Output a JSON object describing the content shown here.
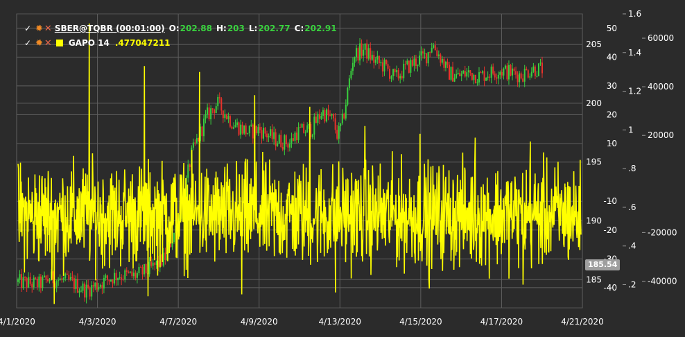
{
  "legend": {
    "main": {
      "symbol": "SBER@TQBR (00:01:00)",
      "o_label": "O:",
      "o": "202.88",
      "h_label": "H:",
      "h": "203",
      "l_label": "L:",
      "l": "202.77",
      "c_label": "C:",
      "c": "202.91",
      "value_color": "#39d13e"
    },
    "indicator": {
      "name": "GAPO 14",
      "value": ".477047211",
      "color": "#ffff00"
    }
  },
  "last_price_tag": "185.54",
  "chart_data": {
    "type": "line",
    "background": "#2b2b2b",
    "grid": true,
    "x_ticks": [
      "4/1/2020",
      "4/3/2020",
      "4/7/2020",
      "4/9/2020",
      "4/13/2020",
      "4/15/2020",
      "4/17/2020",
      "4/21/2020"
    ],
    "axes": {
      "price": {
        "ticks": [
          "185",
          "190",
          "195",
          "200",
          "205"
        ],
        "range": [
          182.6,
          207.6
        ]
      },
      "oscillator": {
        "ticks": [
          "-40",
          "-30",
          "-20",
          "-10",
          "10",
          "20",
          "30",
          "40",
          "50"
        ],
        "range": [
          -47,
          55
        ]
      },
      "gapo": {
        "ticks": [
          ".2",
          ".4",
          ".6",
          ".8",
          "1",
          "1.2",
          "1.4",
          "1.6"
        ],
        "range": [
          0.08,
          1.6
        ]
      },
      "volume": {
        "ticks": [
          "-40000",
          "-20000",
          "20000",
          "40000",
          "60000"
        ],
        "range": [
          -51000,
          70000
        ]
      }
    },
    "series": [
      {
        "name": "SBER@TQBR (00:01:00)",
        "kind": "candles",
        "axis": "price",
        "up_color": "#39d13e",
        "down_color": "#e8322b",
        "points": [
          [
            0,
            184.8
          ],
          [
            0.04,
            184.6
          ],
          [
            0.06,
            185.1
          ],
          [
            0.1,
            184.8
          ],
          [
            0.13,
            184.1
          ],
          [
            0.17,
            185.0
          ],
          [
            0.19,
            185.4
          ],
          [
            0.22,
            185.3
          ],
          [
            0.25,
            185.8
          ],
          [
            0.28,
            186.8
          ],
          [
            0.31,
            190.5
          ],
          [
            0.33,
            195.5
          ],
          [
            0.36,
            198.9
          ],
          [
            0.38,
            200.0
          ],
          [
            0.41,
            198.3
          ],
          [
            0.44,
            197.5
          ],
          [
            0.46,
            197.8
          ],
          [
            0.49,
            196.9
          ],
          [
            0.52,
            196.6
          ],
          [
            0.53,
            197.5
          ],
          [
            0.56,
            197.8
          ],
          [
            0.58,
            199.3
          ],
          [
            0.6,
            198.6
          ],
          [
            0.61,
            197.2
          ],
          [
            0.62,
            198.6
          ],
          [
            0.64,
            204.1
          ],
          [
            0.66,
            204.6
          ],
          [
            0.68,
            203.6
          ],
          [
            0.7,
            203.1
          ],
          [
            0.72,
            202.1
          ],
          [
            0.74,
            203.0
          ],
          [
            0.76,
            203.6
          ],
          [
            0.78,
            204.1
          ],
          [
            0.79,
            205.1
          ],
          [
            0.81,
            203.6
          ],
          [
            0.82,
            202.6
          ],
          [
            0.84,
            202.3
          ],
          [
            0.86,
            202.6
          ],
          [
            0.88,
            202.3
          ],
          [
            0.9,
            202.6
          ],
          [
            0.92,
            202.8
          ],
          [
            0.94,
            202.6
          ],
          [
            0.96,
            202.4
          ],
          [
            0.98,
            202.9
          ]
        ]
      },
      {
        "name": "GAPO 14",
        "kind": "line",
        "axis": "gapo",
        "color": "#ffff00",
        "baseline": 0.56,
        "spread": 0.26,
        "spikes": [
          0.38,
          1.55,
          1.33,
          1.3,
          1.18,
          1.12,
          1.02,
          0.98,
          0.96,
          0.94
        ],
        "dips": [
          0.1,
          0.14,
          0.15,
          0.16,
          0.18,
          0.2
        ]
      }
    ]
  }
}
